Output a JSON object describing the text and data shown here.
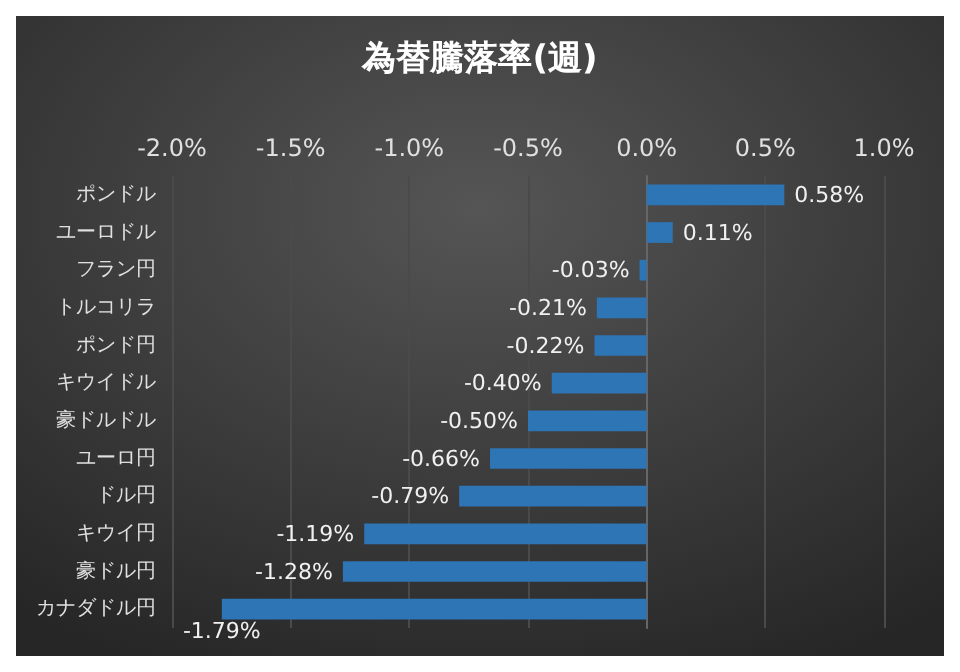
{
  "chart_data": {
    "type": "bar",
    "orientation": "horizontal",
    "title": "為替騰落率(週)",
    "categories": [
      "ポンドル",
      "ユーロドル",
      "フラン円",
      "トルコリラ",
      "ポンド円",
      "キウイドル",
      "豪ドルドル",
      "ユーロ円",
      "ドル円",
      "キウイ円",
      "豪ドル円",
      "カナダドル円"
    ],
    "values": [
      0.58,
      0.11,
      -0.03,
      -0.21,
      -0.22,
      -0.4,
      -0.5,
      -0.66,
      -0.79,
      -1.19,
      -1.28,
      -1.79
    ],
    "value_labels": [
      "0.58%",
      "0.11%",
      "-0.03%",
      "-0.21%",
      "-0.22%",
      "-0.40%",
      "-0.50%",
      "-0.66%",
      "-0.79%",
      "-1.19%",
      "-1.28%",
      "-1.79%"
    ],
    "color": "#2e75b6",
    "xlim": [
      -2,
      1
    ],
    "xticks": [
      {
        "value": -2,
        "label": "-2.0%"
      },
      {
        "value": -1.5,
        "label": "-1.5%"
      },
      {
        "value": -1,
        "label": "-1.0%"
      },
      {
        "value": -0.5,
        "label": "-0.5%"
      },
      {
        "value": 0,
        "label": "0.0%"
      },
      {
        "value": 0.5,
        "label": "0.5%"
      },
      {
        "value": 1,
        "label": "1.0%"
      }
    ],
    "grid": "x"
  }
}
